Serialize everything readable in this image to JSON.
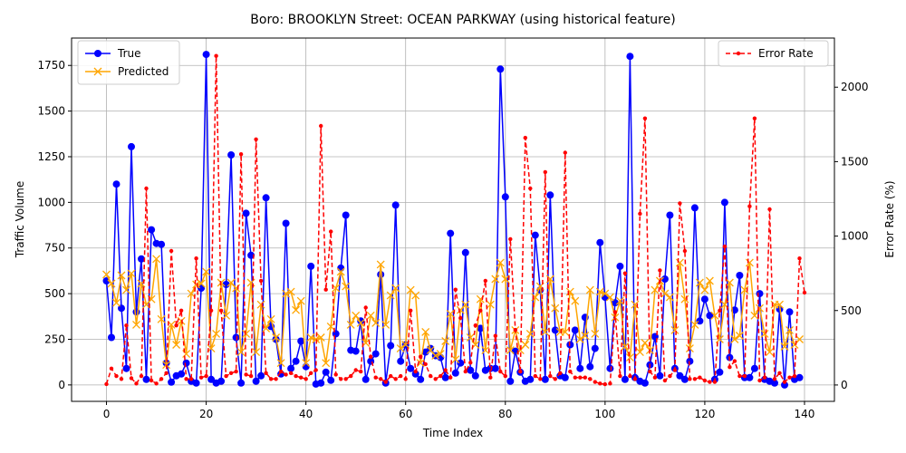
{
  "chart_data": {
    "type": "line",
    "title": "Boro: BROOKLYN Street: OCEAN PARKWAY (using historical feature)",
    "xlabel": "Time Index",
    "ylabel_left": "Traffic Volume",
    "ylabel_right": "Error Rate (%)",
    "xlim": [
      -7,
      146
    ],
    "ylim_left": [
      -90,
      1900
    ],
    "ylim_right": [
      -110,
      2330
    ],
    "x_ticks": [
      0,
      20,
      40,
      60,
      80,
      100,
      120,
      140
    ],
    "y_ticks_left": [
      0,
      250,
      500,
      750,
      1000,
      1250,
      1500,
      1750
    ],
    "y_ticks_right": [
      0,
      500,
      1000,
      1500,
      2000
    ],
    "grid": true,
    "legend_left": "top-left",
    "legend_right": "top-right",
    "colors": {
      "true": "#0000ff",
      "predicted": "#ffa500",
      "error": "#ff0000"
    },
    "series": [
      {
        "name": "True",
        "axis": "left",
        "values": [
          570,
          260,
          1100,
          420,
          90,
          1305,
          400,
          690,
          30,
          850,
          775,
          770,
          120,
          15,
          50,
          60,
          120,
          20,
          10,
          530,
          1810,
          30,
          10,
          20,
          550,
          1260,
          260,
          10,
          940,
          710,
          20,
          50,
          1025,
          320,
          250,
          60,
          885,
          90,
          130,
          240,
          100,
          650,
          5,
          10,
          70,
          25,
          280,
          640,
          930,
          190,
          185,
          350,
          30,
          130,
          170,
          605,
          10,
          215,
          985,
          130,
          220,
          90,
          60,
          30,
          180,
          200,
          160,
          150,
          40,
          830,
          65,
          120,
          725,
          80,
          50,
          310,
          80,
          90,
          90,
          1730,
          1030,
          20,
          185,
          70,
          20,
          30,
          820,
          520,
          30,
          1040,
          300,
          50,
          40,
          220,
          300,
          90,
          370,
          100,
          200,
          780,
          480,
          90,
          450,
          650,
          30,
          1800,
          40,
          20,
          10,
          110,
          265,
          50,
          580,
          930,
          90,
          50,
          30,
          130,
          970,
          350,
          470,
          380,
          30,
          70,
          1000,
          150,
          410,
          600,
          40,
          40,
          90,
          500,
          30,
          20,
          10,
          415,
          0,
          400,
          30,
          40
        ]
      },
      {
        "name": "Predicted",
        "axis": "left",
        "values": [
          605,
          555,
          450,
          600,
          520,
          610,
          330,
          555,
          440,
          470,
          690,
          360,
          110,
          330,
          220,
          350,
          170,
          500,
          550,
          555,
          620,
          200,
          280,
          560,
          380,
          560,
          530,
          180,
          280,
          560,
          180,
          440,
          310,
          360,
          260,
          120,
          500,
          510,
          410,
          460,
          120,
          260,
          250,
          260,
          120,
          320,
          530,
          620,
          540,
          330,
          380,
          340,
          230,
          380,
          340,
          660,
          330,
          490,
          530,
          200,
          220,
          520,
          490,
          120,
          290,
          190,
          160,
          170,
          240,
          390,
          140,
          410,
          440,
          260,
          220,
          470,
          190,
          440,
          580,
          670,
          580,
          190,
          300,
          190,
          220,
          280,
          480,
          540,
          290,
          580,
          420,
          290,
          290,
          510,
          460,
          250,
          270,
          520,
          280,
          510,
          500,
          480,
          370,
          460,
          210,
          150,
          440,
          180,
          230,
          190,
          520,
          570,
          500,
          480,
          300,
          670,
          470,
          200,
          330,
          560,
          520,
          570,
          380,
          250,
          440,
          560,
          250,
          270,
          520,
          670,
          380,
          420,
          280,
          180,
          440,
          440,
          210,
          300,
          220,
          250
        ]
      },
      {
        "name": "Error Rate",
        "axis": "right",
        "values": [
          6,
          110,
          60,
          40,
          400,
          45,
          10,
          60,
          1320,
          30,
          10,
          40,
          80,
          900,
          400,
          500,
          40,
          40,
          850,
          50,
          60,
          500,
          2210,
          500,
          60,
          80,
          90,
          1550,
          70,
          60,
          1650,
          700,
          80,
          40,
          40,
          90,
          70,
          80,
          60,
          50,
          40,
          80,
          100,
          1740,
          640,
          1030,
          70,
          40,
          40,
          60,
          100,
          90,
          520,
          190,
          50,
          40,
          20,
          60,
          40,
          60,
          40,
          500,
          90,
          190,
          140,
          60,
          40,
          60,
          100,
          50,
          640,
          450,
          90,
          150,
          400,
          500,
          700,
          50,
          330,
          90,
          60,
          980,
          370,
          90,
          1660,
          1320,
          60,
          40,
          1430,
          60,
          40,
          80,
          1560,
          90,
          50,
          50,
          50,
          40,
          20,
          10,
          5,
          10,
          490,
          60,
          750,
          60,
          40,
          1150,
          1790,
          90,
          50,
          770,
          30,
          60,
          100,
          1220,
          900,
          40,
          40,
          50,
          30,
          20,
          20,
          500,
          930,
          120,
          160,
          60,
          60,
          1200,
          1790,
          30,
          50,
          1180,
          40,
          80,
          20,
          50,
          60,
          850,
          620
        ]
      }
    ]
  }
}
